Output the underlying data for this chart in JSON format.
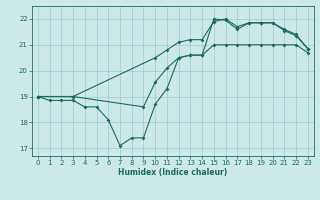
{
  "xlabel": "Humidex (Indice chaleur)",
  "xlim": [
    -0.5,
    23.5
  ],
  "ylim": [
    16.7,
    22.5
  ],
  "yticks": [
    17,
    18,
    19,
    20,
    21,
    22
  ],
  "xticks": [
    0,
    1,
    2,
    3,
    4,
    5,
    6,
    7,
    8,
    9,
    10,
    11,
    12,
    13,
    14,
    15,
    16,
    17,
    18,
    19,
    20,
    21,
    22,
    23
  ],
  "background_color": "#cce8e8",
  "grid_color": "#99cccc",
  "line_color": "#1a6b5a",
  "line1_x": [
    0,
    1,
    2,
    3,
    4,
    5,
    6,
    7,
    8,
    9,
    10,
    11,
    12,
    13,
    14,
    15,
    16,
    17,
    18,
    19,
    20,
    21,
    22,
    23
  ],
  "line1_y": [
    19.0,
    18.85,
    18.85,
    18.85,
    18.6,
    18.6,
    18.1,
    17.1,
    17.4,
    17.4,
    18.7,
    19.3,
    20.5,
    20.6,
    20.6,
    21.0,
    21.0,
    21.0,
    21.0,
    21.0,
    21.0,
    21.0,
    21.0,
    20.7
  ],
  "line2_x": [
    0,
    3,
    10,
    11,
    12,
    13,
    14,
    15,
    16,
    17,
    18,
    19,
    20,
    21,
    22,
    23
  ],
  "line2_y": [
    19.0,
    19.0,
    20.5,
    20.8,
    21.1,
    21.2,
    21.2,
    21.9,
    22.0,
    21.7,
    21.85,
    21.85,
    21.85,
    21.6,
    21.4,
    20.85
  ],
  "line3_x": [
    0,
    3,
    9,
    10,
    11,
    12,
    13,
    14,
    15,
    16,
    17,
    18,
    19,
    20,
    21,
    22,
    23
  ],
  "line3_y": [
    19.0,
    19.0,
    18.6,
    19.55,
    20.1,
    20.5,
    20.6,
    20.6,
    22.0,
    21.95,
    21.6,
    21.85,
    21.85,
    21.85,
    21.55,
    21.35,
    20.85
  ]
}
